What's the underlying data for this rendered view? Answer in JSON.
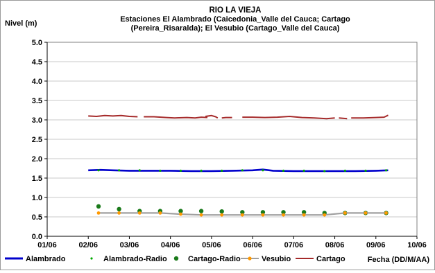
{
  "chart_data": {
    "type": "line",
    "title_lines": [
      "RIO LA VIEJA",
      "Estaciones El Alambrado (Caicedonia_Valle del Cauca; Cartago",
      "(Pereira_Risaralda);  El Vesubio (Cartago_Valle del Cauca)"
    ],
    "ylabel": "Nivel (m)",
    "xlabel": "Fecha (DD/M/AA)",
    "ylim": [
      0,
      5
    ],
    "y_ticks": [
      "0.0",
      "0.5",
      "1.0",
      "1.5",
      "2.0",
      "2.5",
      "3.0",
      "3.5",
      "4.0",
      "4.5",
      "5.0"
    ],
    "xlim": [
      1,
      10
    ],
    "x_ticks": [
      "01/06",
      "02/06",
      "03/06",
      "04/06",
      "05/06",
      "06/06",
      "07/06",
      "08/06",
      "09/06",
      "10/06"
    ],
    "grid": true,
    "legend_position": "bottom",
    "series": [
      {
        "name": "Alambrado",
        "kind": "line",
        "color": "#0000cc",
        "width": 2.6,
        "x": [
          2.0,
          2.3,
          2.6,
          3.0,
          3.5,
          4.0,
          4.5,
          5.0,
          5.5,
          6.0,
          6.25,
          6.5,
          7.0,
          7.5,
          8.0,
          8.5,
          9.0,
          9.3
        ],
        "y": [
          1.7,
          1.71,
          1.7,
          1.69,
          1.69,
          1.69,
          1.68,
          1.68,
          1.69,
          1.7,
          1.72,
          1.69,
          1.68,
          1.68,
          1.68,
          1.68,
          1.69,
          1.7
        ]
      },
      {
        "name": "Alambrado-Radio",
        "kind": "marker",
        "color": "#00aa00",
        "size": 1.6,
        "x": [
          2.25,
          2.75,
          3.25,
          3.75,
          4.25,
          4.75,
          5.25,
          5.75,
          6.25,
          6.75,
          7.25,
          7.75,
          8.25,
          8.75,
          9.25
        ],
        "y": [
          1.7,
          1.7,
          1.7,
          1.69,
          1.69,
          1.69,
          1.69,
          1.7,
          1.7,
          1.69,
          1.69,
          1.68,
          1.69,
          1.69,
          1.7
        ]
      },
      {
        "name": "Cartago-Radio",
        "kind": "marker",
        "color": "#1a7a1a",
        "size": 3.2,
        "x": [
          2.25,
          2.75,
          3.25,
          3.75,
          4.25,
          4.75,
          5.25,
          5.75,
          6.25,
          6.75,
          7.25,
          7.75,
          8.25,
          8.75,
          9.25
        ],
        "y": [
          0.77,
          0.7,
          0.65,
          0.65,
          0.65,
          0.65,
          0.64,
          0.62,
          0.62,
          0.62,
          0.62,
          0.6,
          0.6,
          0.6,
          0.6
        ]
      },
      {
        "name": "Vesubio",
        "kind": "line+marker",
        "color": "#a0a0a0",
        "marker_color": "#ff9900",
        "width": 2.2,
        "x": [
          2.25,
          2.75,
          3.25,
          3.75,
          4.25,
          4.75,
          5.25,
          5.75,
          6.25,
          6.75,
          7.25,
          7.75,
          8.25,
          8.75,
          9.25
        ],
        "y": [
          0.6,
          0.6,
          0.6,
          0.6,
          0.57,
          0.55,
          0.55,
          0.55,
          0.55,
          0.55,
          0.55,
          0.55,
          0.6,
          0.6,
          0.6
        ]
      },
      {
        "name": "Cartago",
        "kind": "line",
        "color": "#a52a2a",
        "width": 2.0,
        "segments": [
          {
            "x": [
              2.0,
              2.2,
              2.4,
              2.6,
              2.8,
              3.0,
              3.2
            ],
            "y": [
              3.1,
              3.09,
              3.11,
              3.1,
              3.11,
              3.09,
              3.08
            ]
          },
          {
            "x": [
              3.35,
              3.6,
              3.9,
              4.1,
              4.4,
              4.6,
              4.75,
              4.9
            ],
            "y": [
              3.08,
              3.08,
              3.06,
              3.05,
              3.06,
              3.05,
              3.07,
              3.06
            ]
          },
          {
            "x": [
              4.85,
              5.0,
              5.1,
              5.15
            ],
            "y": [
              3.09,
              3.11,
              3.08,
              3.05
            ]
          },
          {
            "x": [
              5.25,
              5.35,
              5.5
            ],
            "y": [
              3.05,
              3.06,
              3.06
            ]
          },
          {
            "x": [
              5.75,
              6.0,
              6.3,
              6.6,
              6.9,
              7.2,
              7.5,
              7.8,
              8.0
            ],
            "y": [
              3.07,
              3.07,
              3.06,
              3.07,
              3.09,
              3.06,
              3.05,
              3.03,
              3.05
            ]
          },
          {
            "x": [
              8.1,
              8.3
            ],
            "y": [
              3.05,
              3.03
            ]
          },
          {
            "x": [
              8.4,
              8.7,
              9.0,
              9.2,
              9.3
            ],
            "y": [
              3.05,
              3.05,
              3.06,
              3.07,
              3.12
            ]
          }
        ]
      }
    ]
  }
}
